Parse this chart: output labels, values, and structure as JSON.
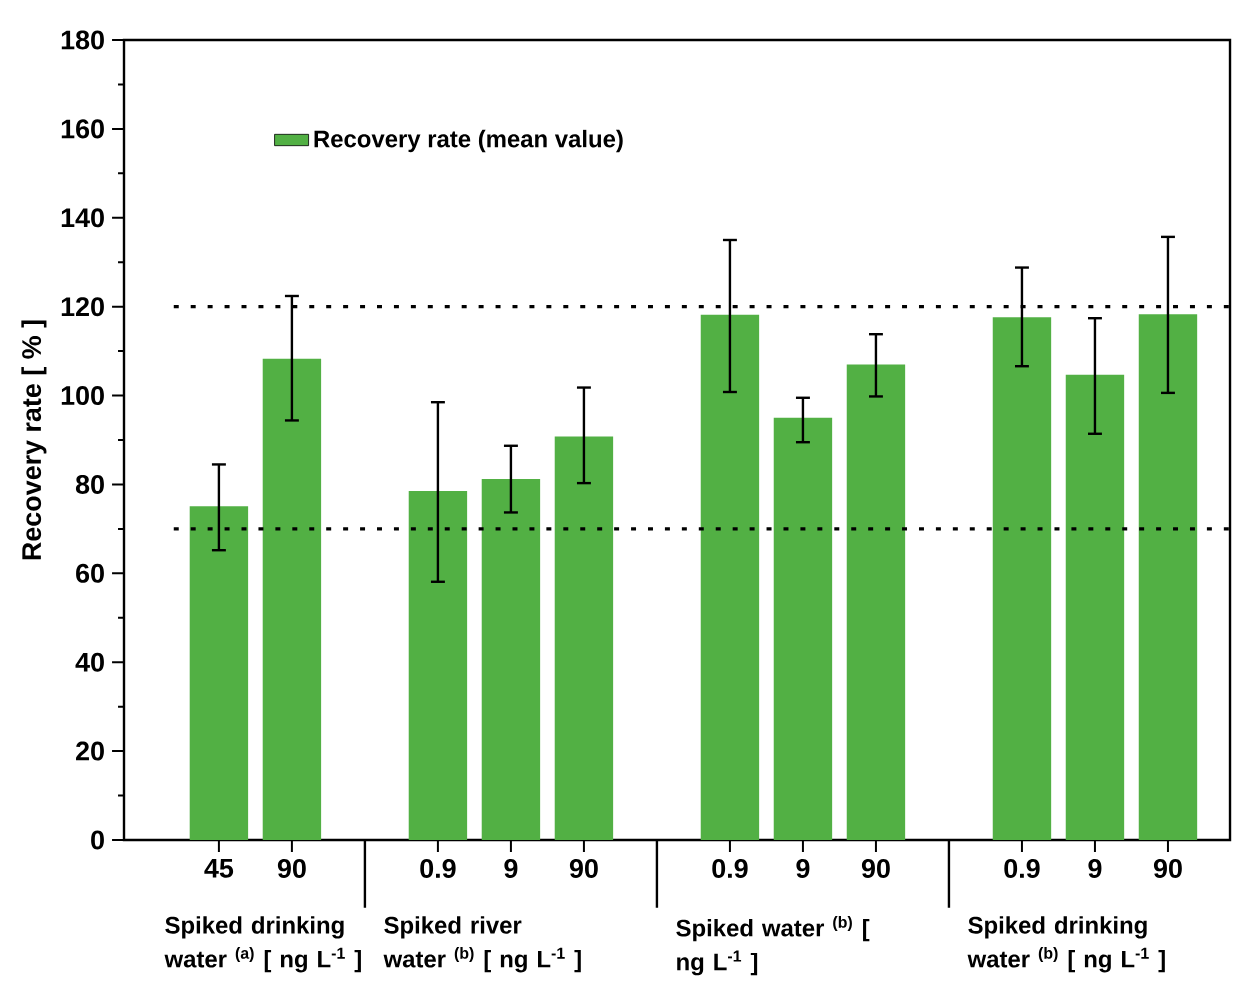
{
  "chart_data": {
    "type": "bar",
    "ylabel": "Recovery rate [ % ]",
    "categories": [
      "45",
      "90",
      null,
      "0.9",
      "9",
      "90",
      null,
      "0.9",
      "9",
      "90",
      null,
      "0.9",
      "9",
      "90"
    ],
    "series": [
      {
        "name": "Recovery rate (mean value)",
        "color": "#52b044",
        "values": [
          75.1,
          108.3,
          null,
          78.5,
          81.2,
          90.8,
          null,
          118.2,
          95,
          107,
          null,
          117.6,
          104.7,
          118.3
        ],
        "errors": [
          [
            65.2,
            84.5
          ],
          [
            94.4,
            122.4
          ],
          null,
          [
            58.1,
            98.5
          ],
          [
            73.7,
            88.7
          ],
          [
            80.3,
            101.8
          ],
          null,
          [
            100.8,
            135
          ],
          [
            89.5,
            99.5
          ],
          [
            99.8,
            113.8
          ],
          null,
          [
            106.6,
            128.8
          ],
          [
            91.4,
            117.4
          ],
          [
            100.6,
            135.7
          ]
        ]
      }
    ],
    "ylim": [
      0,
      180
    ],
    "yticks": [
      0,
      20,
      40,
      60,
      80,
      100,
      120,
      140,
      160,
      180
    ],
    "ref_lines": [
      {
        "axis": "y",
        "value": 120,
        "line_style": "dotted"
      },
      {
        "axis": "y",
        "value": 70,
        "line_style": "dotted"
      }
    ],
    "annotations": [
      "Spiked drinking water $^{(a)}$ [ ng L$^{-1}$ ]",
      "Spiked river water $^{(b)}$ [ ng L$^{-1}$ ]",
      "Spiked water $^{(b)}$ [ ng L$^{-1}$ ]",
      "Spiked drinking water $^{(b)}$ [ ng L$^{-1}$ ]"
    ],
    "legend": "top left",
    "grid": false
  }
}
